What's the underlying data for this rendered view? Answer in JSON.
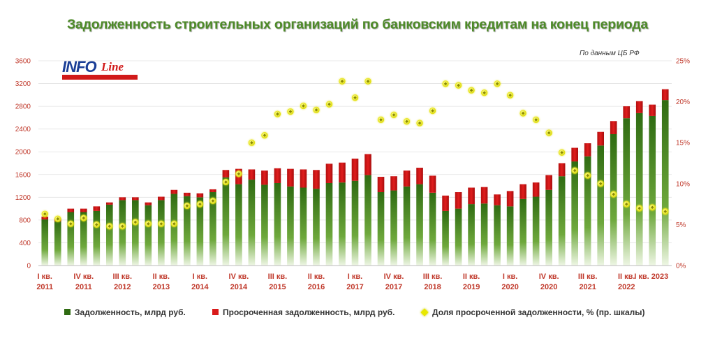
{
  "chart_data": {
    "type": "bar",
    "title": "Задолженность строительных организаций по банковским кредитам на конец периода",
    "note": "По данным ЦБ РФ",
    "logo": "INFOLine",
    "y_left": {
      "ylim": [
        0,
        3600
      ],
      "ticks": [
        0,
        400,
        800,
        1200,
        1600,
        2000,
        2400,
        2800,
        3200,
        3600
      ]
    },
    "y_right": {
      "ylim": [
        0,
        25
      ],
      "ticks": [
        "0%",
        "5%",
        "10%",
        "15%",
        "20%",
        "25%"
      ]
    },
    "x_tick_labels": [
      [
        "I кв.",
        "2011"
      ],
      [
        "IV кв.",
        "2011"
      ],
      [
        "III кв.",
        "2012"
      ],
      [
        "II кв.",
        "2013"
      ],
      [
        "I кв.",
        "2014"
      ],
      [
        "IV кв.",
        "2014"
      ],
      [
        "III кв.",
        "2015"
      ],
      [
        "II кв.",
        "2016"
      ],
      [
        "I кв.",
        "2017"
      ],
      [
        "IV кв.",
        "2017"
      ],
      [
        "III кв.",
        "2018"
      ],
      [
        "II кв.",
        "2019"
      ],
      [
        "I кв.",
        "2020"
      ],
      [
        "IV кв.",
        "2020"
      ],
      [
        "III кв.",
        "2021"
      ],
      [
        "II кв.",
        "2022"
      ],
      [
        "I кв. 2023",
        ""
      ]
    ],
    "x_tick_index": [
      0,
      3,
      6,
      9,
      12,
      15,
      18,
      21,
      24,
      27,
      30,
      33,
      36,
      39,
      42,
      45,
      48
    ],
    "series": [
      {
        "name": "Задолженность, млрд руб.",
        "color": "#3a7a1a",
        "values": [
          810,
          775,
          940,
          940,
          960,
          1070,
          1150,
          1150,
          1060,
          1150,
          1260,
          1220,
          1200,
          1290,
          1550,
          1430,
          1510,
          1420,
          1450,
          1390,
          1370,
          1350,
          1450,
          1460,
          1490,
          1590,
          1290,
          1320,
          1390,
          1430,
          1280,
          960,
          1000,
          1080,
          1090,
          1060,
          1040,
          1170,
          1210,
          1330,
          1570,
          1830,
          1920,
          2110,
          2310,
          2590,
          2680,
          2630,
          2910
        ]
      },
      {
        "name": "Просроченная задолженность, млрд руб.",
        "color": "#d91a1a",
        "values": [
          50,
          55,
          60,
          60,
          80,
          40,
          50,
          50,
          50,
          60,
          70,
          60,
          70,
          50,
          130,
          270,
          180,
          250,
          260,
          310,
          320,
          330,
          340,
          350,
          390,
          370,
          270,
          250,
          280,
          290,
          300,
          270,
          290,
          290,
          290,
          190,
          270,
          260,
          250,
          260,
          230,
          240,
          230,
          240,
          230,
          210,
          210,
          200,
          190
        ]
      },
      {
        "name": "Доля просроченной задолженности, % (пр. шкалы)",
        "color": "#f0f014",
        "values": [
          6.3,
          5.7,
          5.1,
          5.8,
          5.0,
          4.8,
          4.8,
          5.3,
          5.1,
          5.1,
          5.1,
          7.3,
          7.5,
          7.9,
          10.2,
          11.2,
          15.0,
          15.9,
          18.5,
          18.8,
          19.5,
          19.0,
          19.7,
          22.5,
          20.5,
          22.5,
          17.8,
          18.4,
          17.6,
          17.4,
          18.9,
          22.2,
          22.0,
          21.4,
          21.1,
          22.2,
          20.8,
          18.6,
          17.8,
          16.2,
          13.8,
          11.6,
          11.0,
          10.0,
          8.7,
          7.5,
          7.0,
          7.1,
          6.6
        ]
      }
    ]
  }
}
